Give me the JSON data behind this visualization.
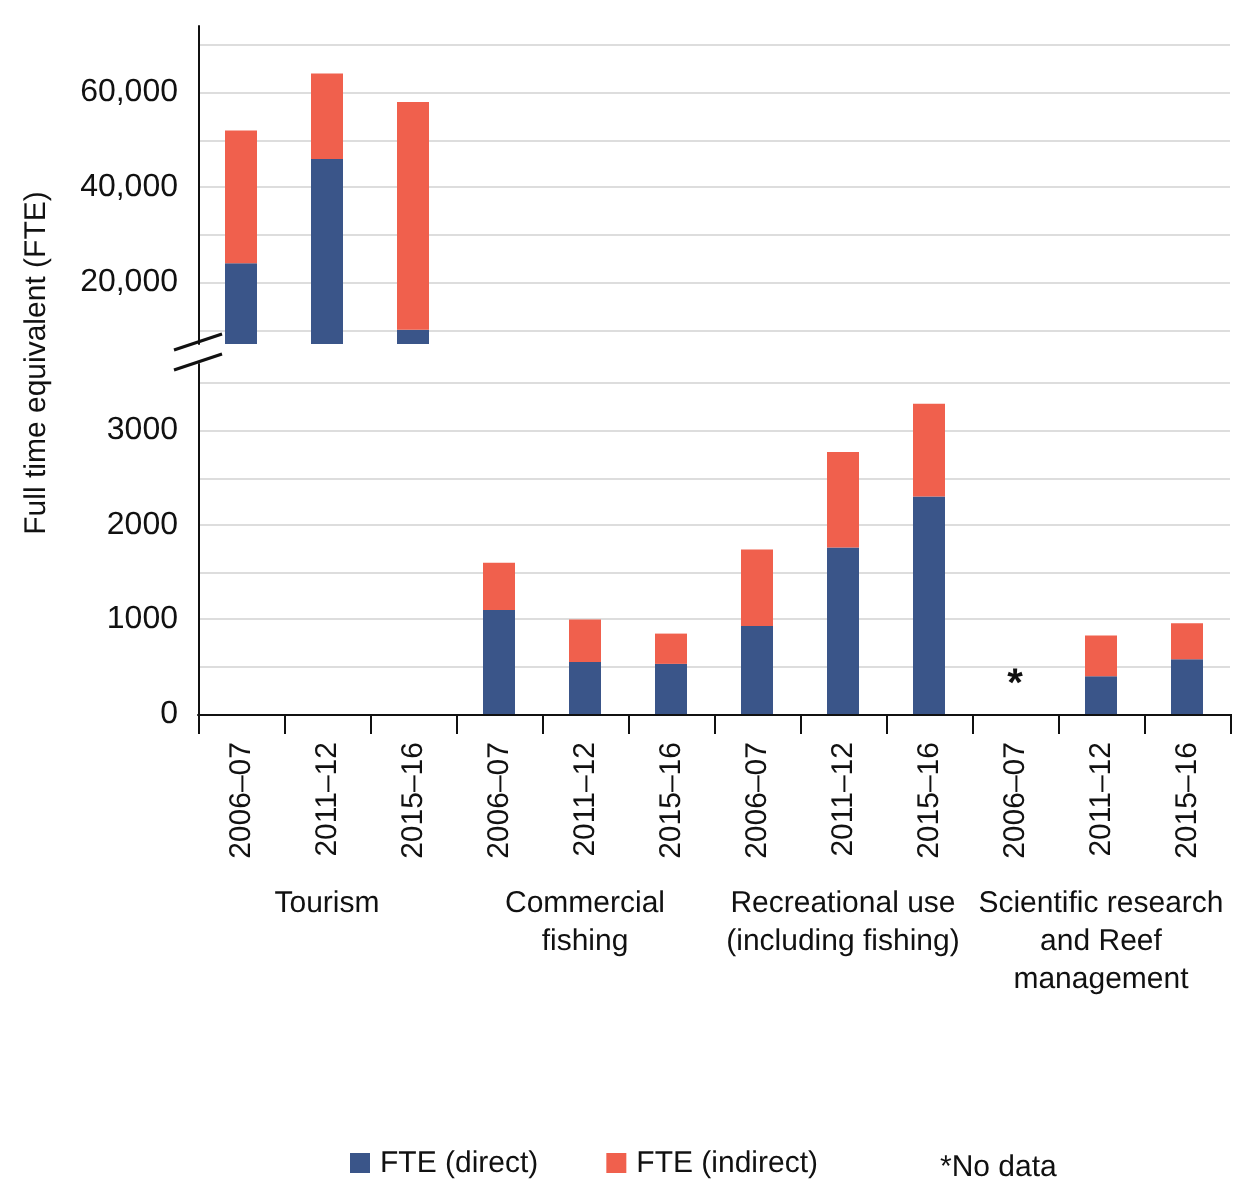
{
  "chart_data": [
    {
      "type": "bar",
      "ylabel": "Full time equivalent (FTE)",
      "stacked": true,
      "tick_labels": "y",
      "grid": "y",
      "legend": false,
      "categories": [
        null,
        null,
        null,
        null,
        null,
        null,
        null,
        null,
        null,
        null,
        null,
        null
      ],
      "ylim": [
        7000,
        74000
      ],
      "yticks": [
        {
          "value": 10000,
          "label": null
        },
        {
          "value": 20000,
          "label": "20,000"
        },
        {
          "value": 30000,
          "label": null
        },
        {
          "value": 40000,
          "label": "40,000"
        },
        {
          "value": 50000,
          "label": null
        },
        {
          "value": 60000,
          "label": "60,000"
        },
        {
          "value": 70000,
          "label": null
        }
      ],
      "series": [
        {
          "color": "#3a5589",
          "values": [
            24000,
            46000,
            10000,
            null,
            null,
            null,
            null,
            null,
            null,
            null,
            null,
            null
          ]
        },
        {
          "color": "#f0604d",
          "values": [
            28000,
            18000,
            48000,
            null,
            null,
            null,
            null,
            null,
            null,
            null,
            null,
            null
          ]
        }
      ]
    },
    {
      "type": "bar",
      "stacked": true,
      "grid": "y",
      "legend": "bottom",
      "categories": [
        "2006–07",
        "2011–12",
        "2015–16",
        "2006–07",
        "2011–12",
        "2015–16",
        "2006–07",
        "2011–12",
        "2015–16",
        "2006–07",
        "2011–12",
        "2015–16"
      ],
      "ylim": [
        0,
        3700
      ],
      "yticks": [
        0,
        {
          "value": 500,
          "label": null
        },
        1000,
        {
          "value": 1500,
          "label": null
        },
        2000,
        {
          "value": 2500,
          "label": null
        },
        3000,
        {
          "value": 3500,
          "label": null
        }
      ],
      "series": [
        {
          "name": "FTE (direct)",
          "color": "#3a5589",
          "values": [
            null,
            null,
            null,
            1100,
            550,
            530,
            930,
            1760,
            2300,
            null,
            400,
            580
          ],
          "value_labels": [
            null,
            null,
            null,
            null,
            null,
            null,
            null,
            null,
            null,
            "*",
            null,
            null
          ]
        },
        {
          "name": "FTE (indirect)",
          "color": "#f0604d",
          "values": [
            null,
            null,
            null,
            500,
            450,
            320,
            810,
            1010,
            980,
            null,
            430,
            380
          ]
        }
      ],
      "annotations": [
        "Tourism",
        "Commercial fishing",
        "Recreational use (including fishing)",
        "Scientific research and Reef management",
        "*No data"
      ]
    }
  ]
}
